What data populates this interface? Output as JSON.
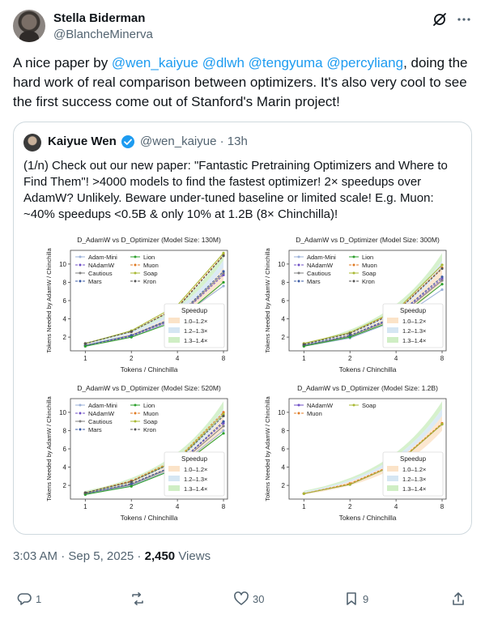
{
  "author": {
    "name": "Stella Biderman",
    "handle": "@BlancheMinerva"
  },
  "tweet": {
    "parts": [
      {
        "text": "A nice paper by ",
        "mention": false
      },
      {
        "text": "@wen_kaiyue",
        "mention": true
      },
      {
        "text": " ",
        "mention": false
      },
      {
        "text": "@dlwh",
        "mention": true
      },
      {
        "text": " ",
        "mention": false
      },
      {
        "text": "@tengyuma",
        "mention": true
      },
      {
        "text": " ",
        "mention": false
      },
      {
        "text": "@percyliang",
        "mention": true
      },
      {
        "text": ", doing the hard work of real comparison between optimizers. It's also very cool to see the first success come out of Stanford's Marin project!",
        "mention": false
      }
    ]
  },
  "quote": {
    "name": "Kaiyue Wen",
    "handle_time": "@wen_kaiyue · 13h",
    "text": "(1/n) Check out our new paper: \"Fantastic Pretraining Optimizers and Where to Find Them\"! >4000 models to find the fastest optimizer! 2× speedups over AdamW? Unlikely. Beware under-tuned baseline or limited scale! E.g. Muon: ~40% speedups <0.5B & only 10% at 1.2B (8× Chinchilla)!"
  },
  "meta": {
    "time": "3:03 AM · Sep 5, 2025 · ",
    "views_count": "2,450",
    "views_label": " Views"
  },
  "actions": {
    "replies": "1",
    "reposts": "",
    "likes": "30",
    "bookmarks": "9"
  },
  "icons": [
    "grok-icon",
    "more-icon",
    "verified-icon",
    "reply-icon",
    "repost-icon",
    "like-icon",
    "bookmark-icon",
    "share-icon"
  ],
  "colors": {
    "mention": "#1d9bf0",
    "verified": "#1d9bf0",
    "text": "#0f1419",
    "muted": "#536471"
  },
  "chart_data": [
    {
      "type": "line",
      "title": "D_AdamW vs D_Optimizer (Model Size: 130M)",
      "xlabel": "Tokens / Chinchilla",
      "ylabel": "Tokens Needed by AdamW / Chinchilla",
      "xticks": [
        "1",
        "2",
        "4",
        "8"
      ],
      "yticks": [
        "2",
        "4",
        "6",
        "8",
        "10"
      ],
      "x": [
        1,
        2,
        4,
        8
      ],
      "xlim": [
        0.8,
        8.5
      ],
      "ylim": [
        0.5,
        11.5
      ],
      "legend_title": "Speedup",
      "speedup_bands": [
        {
          "label": "1.0–1.2×",
          "color": "#fbe3c8",
          "low": 1.0,
          "high": 1.2
        },
        {
          "label": "1.2–1.3×",
          "color": "#d5e6f3",
          "low": 1.2,
          "high": 1.3
        },
        {
          "label": "1.3–1.4×",
          "color": "#cfeec4",
          "low": 1.3,
          "high": 1.4
        }
      ],
      "series": [
        {
          "name": "Adam-Mini",
          "color": "#9bb0d8",
          "values": [
            1.0,
            2.0,
            4.0,
            7.6
          ]
        },
        {
          "name": "NAdamW",
          "color": "#6f4fc6",
          "values": [
            1.1,
            2.1,
            4.1,
            8.8
          ]
        },
        {
          "name": "Cautious",
          "color": "#7f7f7f",
          "values": [
            1.1,
            2.2,
            4.2,
            9.0
          ]
        },
        {
          "name": "Mars",
          "color": "#3b5ba5",
          "values": [
            1.1,
            2.2,
            4.3,
            9.2
          ]
        },
        {
          "name": "Lion",
          "color": "#2ca02c",
          "values": [
            1.0,
            2.0,
            3.8,
            8.0
          ]
        },
        {
          "name": "Muon",
          "color": "#e07b24",
          "values": [
            1.3,
            2.6,
            5.3,
            11.0
          ]
        },
        {
          "name": "Soap",
          "color": "#a8b832",
          "values": [
            1.3,
            2.7,
            5.5,
            11.2
          ]
        },
        {
          "name": "Kron",
          "color": "#555555",
          "values": [
            1.3,
            2.6,
            5.2,
            10.9
          ]
        }
      ]
    },
    {
      "type": "line",
      "title": "D_AdamW vs D_Optimizer (Model Size: 300M)",
      "xlabel": "Tokens / Chinchilla",
      "ylabel": "Tokens Needed by AdamW / Chinchilla",
      "xticks": [
        "1",
        "2",
        "4",
        "8"
      ],
      "yticks": [
        "2",
        "4",
        "6",
        "8",
        "10"
      ],
      "x": [
        1,
        2,
        4,
        8
      ],
      "xlim": [
        0.8,
        8.5
      ],
      "ylim": [
        0.5,
        11.5
      ],
      "legend_title": "Speedup",
      "speedup_bands": [
        {
          "label": "1.0–1.2×",
          "color": "#fbe3c8",
          "low": 1.0,
          "high": 1.2
        },
        {
          "label": "1.2–1.3×",
          "color": "#d5e6f3",
          "low": 1.2,
          "high": 1.3
        },
        {
          "label": "1.3–1.4×",
          "color": "#cfeec4",
          "low": 1.3,
          "high": 1.4
        }
      ],
      "series": [
        {
          "name": "Adam-Mini",
          "color": "#9bb0d8",
          "values": [
            1.0,
            1.9,
            3.8,
            7.2
          ]
        },
        {
          "name": "NAdamW",
          "color": "#6f4fc6",
          "values": [
            1.1,
            2.1,
            4.2,
            8.4
          ]
        },
        {
          "name": "Cautious",
          "color": "#7f7f7f",
          "values": [
            1.1,
            2.1,
            4.1,
            8.2
          ]
        },
        {
          "name": "Mars",
          "color": "#3b5ba5",
          "values": [
            1.1,
            2.2,
            4.3,
            8.6
          ]
        },
        {
          "name": "Lion",
          "color": "#2ca02c",
          "values": [
            1.0,
            2.0,
            3.9,
            7.8
          ]
        },
        {
          "name": "Muon",
          "color": "#e07b24",
          "values": [
            1.3,
            2.5,
            4.8,
            9.6
          ]
        },
        {
          "name": "Soap",
          "color": "#a8b832",
          "values": [
            1.3,
            2.5,
            4.9,
            9.9
          ]
        },
        {
          "name": "Kron",
          "color": "#555555",
          "values": [
            1.2,
            2.4,
            4.7,
            9.5
          ]
        }
      ]
    },
    {
      "type": "line",
      "title": "D_AdamW vs D_Optimizer (Model Size: 520M)",
      "xlabel": "Tokens / Chinchilla",
      "ylabel": "Tokens Needed by AdamW / Chinchilla",
      "xticks": [
        "1",
        "2",
        "4",
        "8"
      ],
      "yticks": [
        "2",
        "4",
        "6",
        "8",
        "10"
      ],
      "x": [
        1,
        2,
        4,
        8
      ],
      "xlim": [
        0.8,
        8.5
      ],
      "ylim": [
        0.5,
        11.5
      ],
      "legend_title": "Speedup",
      "speedup_bands": [
        {
          "label": "1.0–1.2×",
          "color": "#fbe3c8",
          "low": 1.0,
          "high": 1.2
        },
        {
          "label": "1.2–1.3×",
          "color": "#d5e6f3",
          "low": 1.2,
          "high": 1.3
        },
        {
          "label": "1.3–1.4×",
          "color": "#cfeec4",
          "low": 1.3,
          "high": 1.4
        }
      ],
      "series": [
        {
          "name": "Adam-Mini",
          "color": "#9bb0d8",
          "values": [
            1.0,
            2.0,
            4.0,
            8.0
          ]
        },
        {
          "name": "NAdamW",
          "color": "#6f4fc6",
          "values": [
            1.1,
            2.1,
            4.3,
            8.8
          ]
        },
        {
          "name": "Cautious",
          "color": "#7f7f7f",
          "values": [
            1.1,
            2.1,
            4.2,
            8.5
          ]
        },
        {
          "name": "Mars",
          "color": "#3b5ba5",
          "values": [
            1.1,
            2.2,
            4.3,
            9.0
          ]
        },
        {
          "name": "Lion",
          "color": "#2ca02c",
          "values": [
            1.0,
            1.9,
            3.9,
            7.7
          ]
        },
        {
          "name": "Muon",
          "color": "#e07b24",
          "values": [
            1.2,
            2.5,
            4.9,
            10.0
          ]
        },
        {
          "name": "Soap",
          "color": "#a8b832",
          "values": [
            1.2,
            2.4,
            4.8,
            9.8
          ]
        },
        {
          "name": "Kron",
          "color": "#555555",
          "values": [
            1.2,
            2.4,
            4.7,
            9.6
          ]
        }
      ]
    },
    {
      "type": "line",
      "title": "D_AdamW vs D_Optimizer (Model Size: 1.2B)",
      "xlabel": "Tokens / Chinchilla",
      "ylabel": "Tokens Needed by AdamW / Chinchilla",
      "xticks": [
        "1",
        "2",
        "4",
        "8"
      ],
      "yticks": [
        "2",
        "4",
        "6",
        "8",
        "10"
      ],
      "x": [
        1,
        2,
        4,
        8
      ],
      "xlim": [
        0.8,
        8.5
      ],
      "ylim": [
        0.5,
        11.5
      ],
      "legend_title": "Speedup",
      "speedup_bands": [
        {
          "label": "1.0–1.2×",
          "color": "#fbe3c8",
          "low": 1.0,
          "high": 1.2
        },
        {
          "label": "1.2–1.3×",
          "color": "#d5e6f3",
          "low": 1.2,
          "high": 1.3
        },
        {
          "label": "1.3–1.4×",
          "color": "#cfeec4",
          "low": 1.3,
          "high": 1.4
        }
      ],
      "series": [
        {
          "name": "NAdamW",
          "color": "#6f4fc6",
          "values": [
            1.1,
            2.1,
            4.3,
            8.7
          ]
        },
        {
          "name": "Muon",
          "color": "#e07b24",
          "values": [
            1.1,
            2.2,
            4.4,
            8.8
          ]
        },
        {
          "name": "Soap",
          "color": "#a8b832",
          "values": [
            1.1,
            2.1,
            4.3,
            8.7
          ]
        }
      ]
    }
  ]
}
